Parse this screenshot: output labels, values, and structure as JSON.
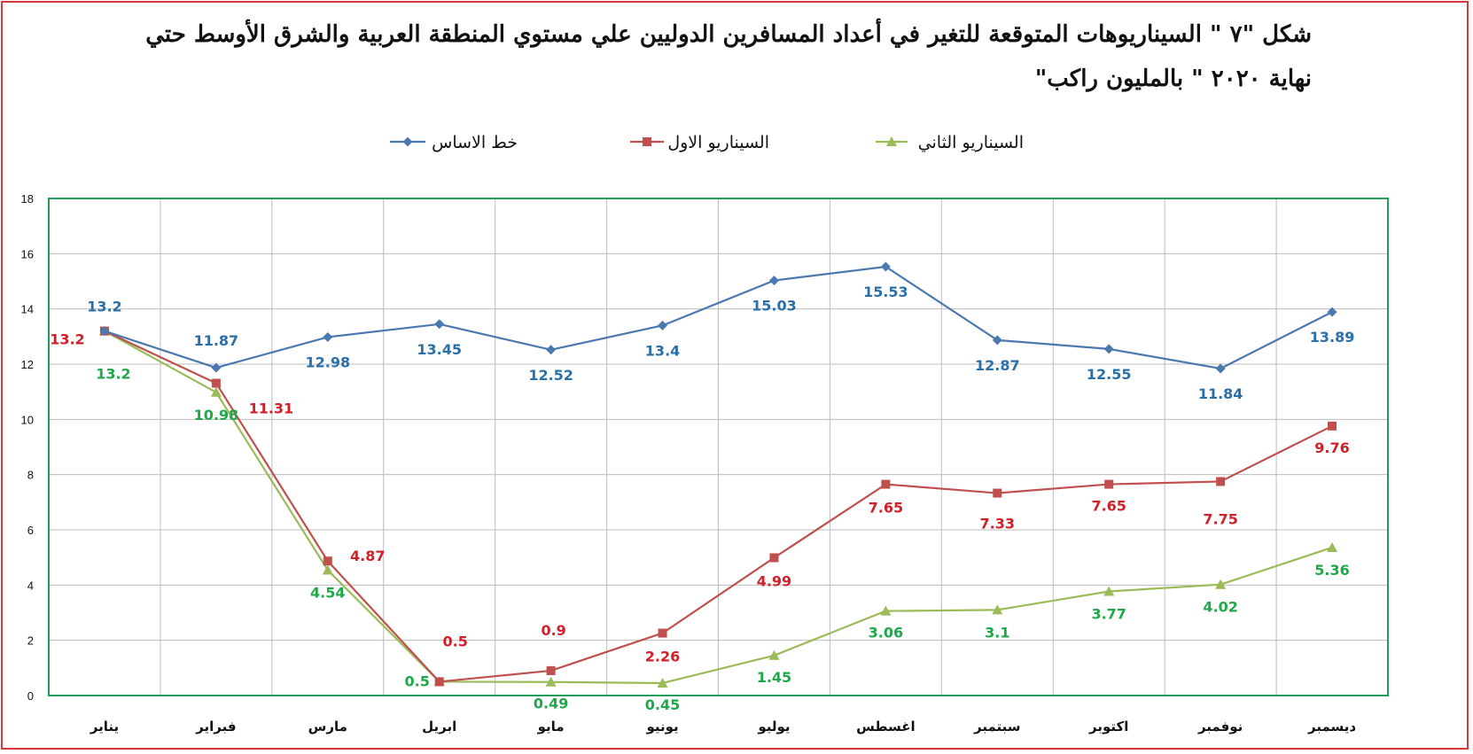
{
  "title_line1": "شكل \"٧ \" السيناريوهات المتوقعة للتغير في أعداد  المسافرين الدوليين علي مستوي المنطقة العربية والشرق الأوسط حتي",
  "title_line2": "نهاية ٢٠٢٠ \" بالمليون راكب\"",
  "colors": {
    "base": "#4a79b0",
    "base_label": "#2a6fa8",
    "s1": "#c0504d",
    "s1_label": "#d0202a",
    "s2": "#9bbb59",
    "s2_label": "#1fa84a",
    "plot_border": "#1e9e5a",
    "frame": "#d9363e"
  },
  "chart_data": {
    "type": "line",
    "categories": [
      "يناير",
      "فبراير",
      "مارس",
      "ابريل",
      "مايو",
      "يونيو",
      "يوليو",
      "اغسطس",
      "سبتمبر",
      "اكتوبر",
      "نوفمبر",
      "ديسمبر"
    ],
    "ylim": [
      0,
      18
    ],
    "yticks": [
      "0",
      "2",
      "4",
      "6",
      "8",
      "10",
      "12",
      "14",
      "16",
      "18"
    ],
    "grid": true,
    "legend_position": "top",
    "series": [
      {
        "key": "base",
        "name": "خط الاساس",
        "marker": "diamond",
        "values": [
          13.2,
          11.87,
          12.98,
          13.45,
          12.52,
          13.4,
          15.03,
          15.53,
          12.87,
          12.55,
          11.84,
          13.89
        ],
        "labels": [
          "13.2",
          "11.87",
          "12.98",
          "13.45",
          "12.52",
          "13.4",
          "15.03",
          "15.53",
          "12.87",
          "12.55",
          "11.84",
          "13.89"
        ]
      },
      {
        "key": "s1",
        "name": "السيناريو الاول",
        "marker": "square",
        "values": [
          13.2,
          11.31,
          4.87,
          0.5,
          0.9,
          2.26,
          4.99,
          7.65,
          7.33,
          7.65,
          7.75,
          9.76
        ],
        "labels": [
          "13.2",
          "11.31",
          "4.87",
          "0.5",
          "0.9",
          "2.26",
          "4.99",
          "7.65",
          "7.33",
          "7.65",
          "7.75",
          "9.76"
        ]
      },
      {
        "key": "s2",
        "name": "السيناريو الثاني",
        "marker": "triangle",
        "values": [
          13.2,
          10.98,
          4.54,
          0.5,
          0.49,
          0.45,
          1.45,
          3.06,
          3.1,
          3.77,
          4.02,
          5.36
        ],
        "labels": [
          "13.2",
          "10.98",
          "4.54",
          "0.5",
          "0.49",
          "0.45",
          "1.45",
          "3.06",
          "3.1",
          "3.77",
          "4.02",
          "5.36"
        ]
      }
    ]
  }
}
